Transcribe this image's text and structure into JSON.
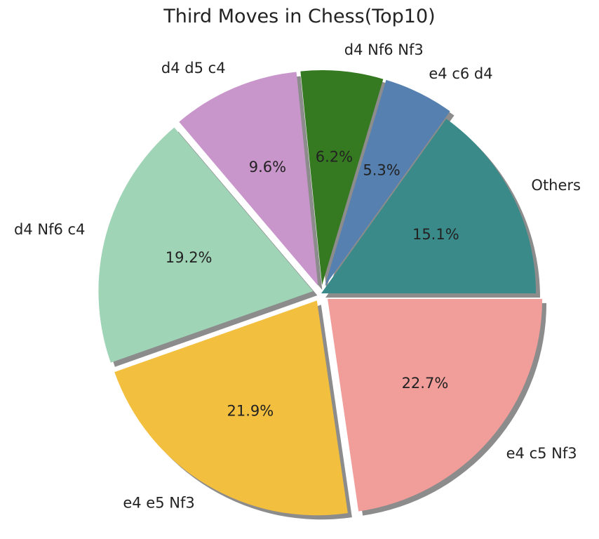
{
  "chart_data": {
    "type": "pie",
    "title": "Third Moves in Chess(Top10)",
    "slices": [
      {
        "label": "Others",
        "value": 15.1,
        "pct_label": "15.1%",
        "color": "#3a8a8a",
        "explode": false
      },
      {
        "label": "e4 c6 d4",
        "value": 5.3,
        "pct_label": "5.3%",
        "color": "#5580b0",
        "explode": true
      },
      {
        "label": "d4 Nf6 Nf3",
        "value": 6.2,
        "pct_label": "6.2%",
        "color": "#357a20",
        "explode": true
      },
      {
        "label": "d4 d5 c4",
        "value": 9.6,
        "pct_label": "9.6%",
        "color": "#c996cc",
        "explode": true
      },
      {
        "label": "d4 Nf6 c4",
        "value": 19.2,
        "pct_label": "19.2%",
        "color": "#9fd4b6",
        "explode": true
      },
      {
        "label": "e4 e5 Nf3",
        "value": 21.9,
        "pct_label": "21.9%",
        "color": "#f3bf3e",
        "explode": true
      },
      {
        "label": "e4 c5 Nf3",
        "value": 22.7,
        "pct_label": "22.7%",
        "color": "#f19d9a",
        "explode": true
      }
    ],
    "start_angle_deg": 0,
    "direction": "counterclockwise",
    "shadow": true
  }
}
